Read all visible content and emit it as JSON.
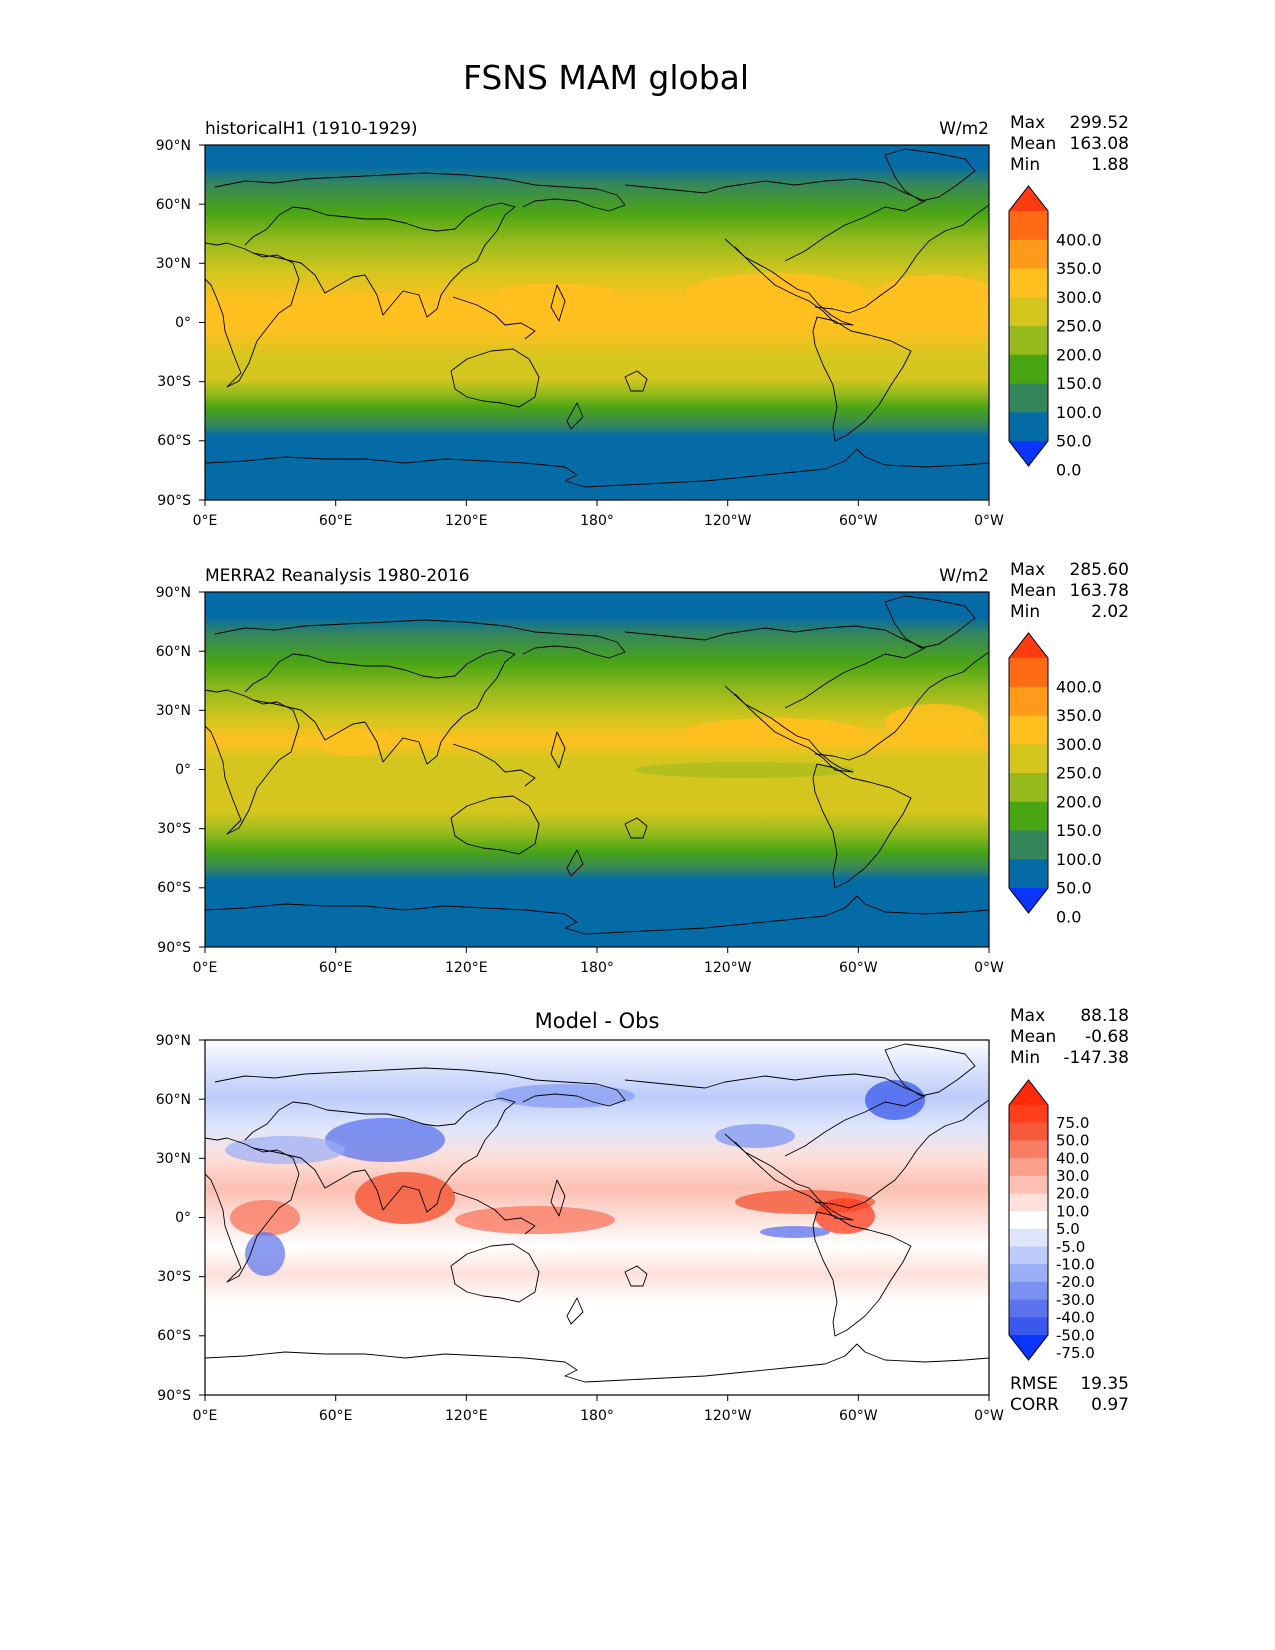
{
  "title": "FSNS MAM global",
  "chart_data": [
    {
      "type": "heatmap",
      "left_title": "historicalH1 (1910-1929)",
      "units": "W/m2",
      "stats": {
        "max": "299.52",
        "mean": "163.08",
        "min": "1.88"
      },
      "stat_labels": {
        "max": "Max",
        "mean": "Mean",
        "min": "Min"
      },
      "x_ticks": [
        "0°E",
        "60°E",
        "120°E",
        "180°",
        "120°W",
        "60°W",
        "0°W"
      ],
      "y_ticks": [
        "90°N",
        "60°N",
        "30°N",
        "0°",
        "30°S",
        "60°S",
        "90°S"
      ],
      "colorbar": {
        "labels": [
          "400.0",
          "350.0",
          "300.0",
          "250.0",
          "200.0",
          "150.0",
          "100.0",
          "50.0",
          "0.0"
        ],
        "colors": [
          "#ff3b10",
          "#ff6a14",
          "#ff9a1a",
          "#ffc020",
          "#d4c61e",
          "#96ba1c",
          "#4aa514",
          "#36865c",
          "#056ba6",
          "#0a35ff"
        ]
      }
    },
    {
      "type": "heatmap",
      "left_title": "MERRA2 Reanalysis 1980-2016",
      "units": "W/m2",
      "stats": {
        "max": "285.60",
        "mean": "163.78",
        "min": "2.02"
      },
      "stat_labels": {
        "max": "Max",
        "mean": "Mean",
        "min": "Min"
      },
      "x_ticks": [
        "0°E",
        "60°E",
        "120°E",
        "180°",
        "120°W",
        "60°W",
        "0°W"
      ],
      "y_ticks": [
        "90°N",
        "60°N",
        "30°N",
        "0°",
        "30°S",
        "60°S",
        "90°S"
      ],
      "colorbar": {
        "labels": [
          "400.0",
          "350.0",
          "300.0",
          "250.0",
          "200.0",
          "150.0",
          "100.0",
          "50.0",
          "0.0"
        ],
        "colors": [
          "#ff3b10",
          "#ff6a14",
          "#ff9a1a",
          "#ffc020",
          "#d4c61e",
          "#96ba1c",
          "#4aa514",
          "#36865c",
          "#056ba6",
          "#0a35ff"
        ]
      }
    },
    {
      "type": "heatmap",
      "center_title": "Model - Obs",
      "stats": {
        "max": "88.18",
        "mean": "-0.68",
        "min": "-147.38"
      },
      "stat_labels": {
        "max": "Max",
        "mean": "Mean",
        "min": "Min"
      },
      "x_ticks": [
        "0°E",
        "60°E",
        "120°E",
        "180°",
        "120°W",
        "60°W",
        "0°W"
      ],
      "y_ticks": [
        "90°N",
        "60°N",
        "30°N",
        "0°",
        "30°S",
        "60°S",
        "90°S"
      ],
      "colorbar": {
        "labels": [
          "75.0",
          "50.0",
          "40.0",
          "30.0",
          "20.0",
          "10.0",
          "5.0",
          "-5.0",
          "-10.0",
          "-20.0",
          "-30.0",
          "-40.0",
          "-50.0",
          "-75.0"
        ],
        "colors": [
          "#ff2a0a",
          "#ff3e1c",
          "#f45a3a",
          "#f97c64",
          "#fb9e8a",
          "#fcbfb2",
          "#fde0da",
          "#ffffff",
          "#dfe6fc",
          "#bccbfa",
          "#9aaef6",
          "#7a91f2",
          "#5b74ee",
          "#3a58ec",
          "#0a35ff"
        ]
      },
      "metrics": {
        "rmse_label": "RMSE",
        "rmse": "19.35",
        "corr_label": "CORR",
        "corr": "0.97"
      }
    }
  ],
  "colors": {
    "land_line": "#000000",
    "ocean_dark": "#056ba6"
  }
}
